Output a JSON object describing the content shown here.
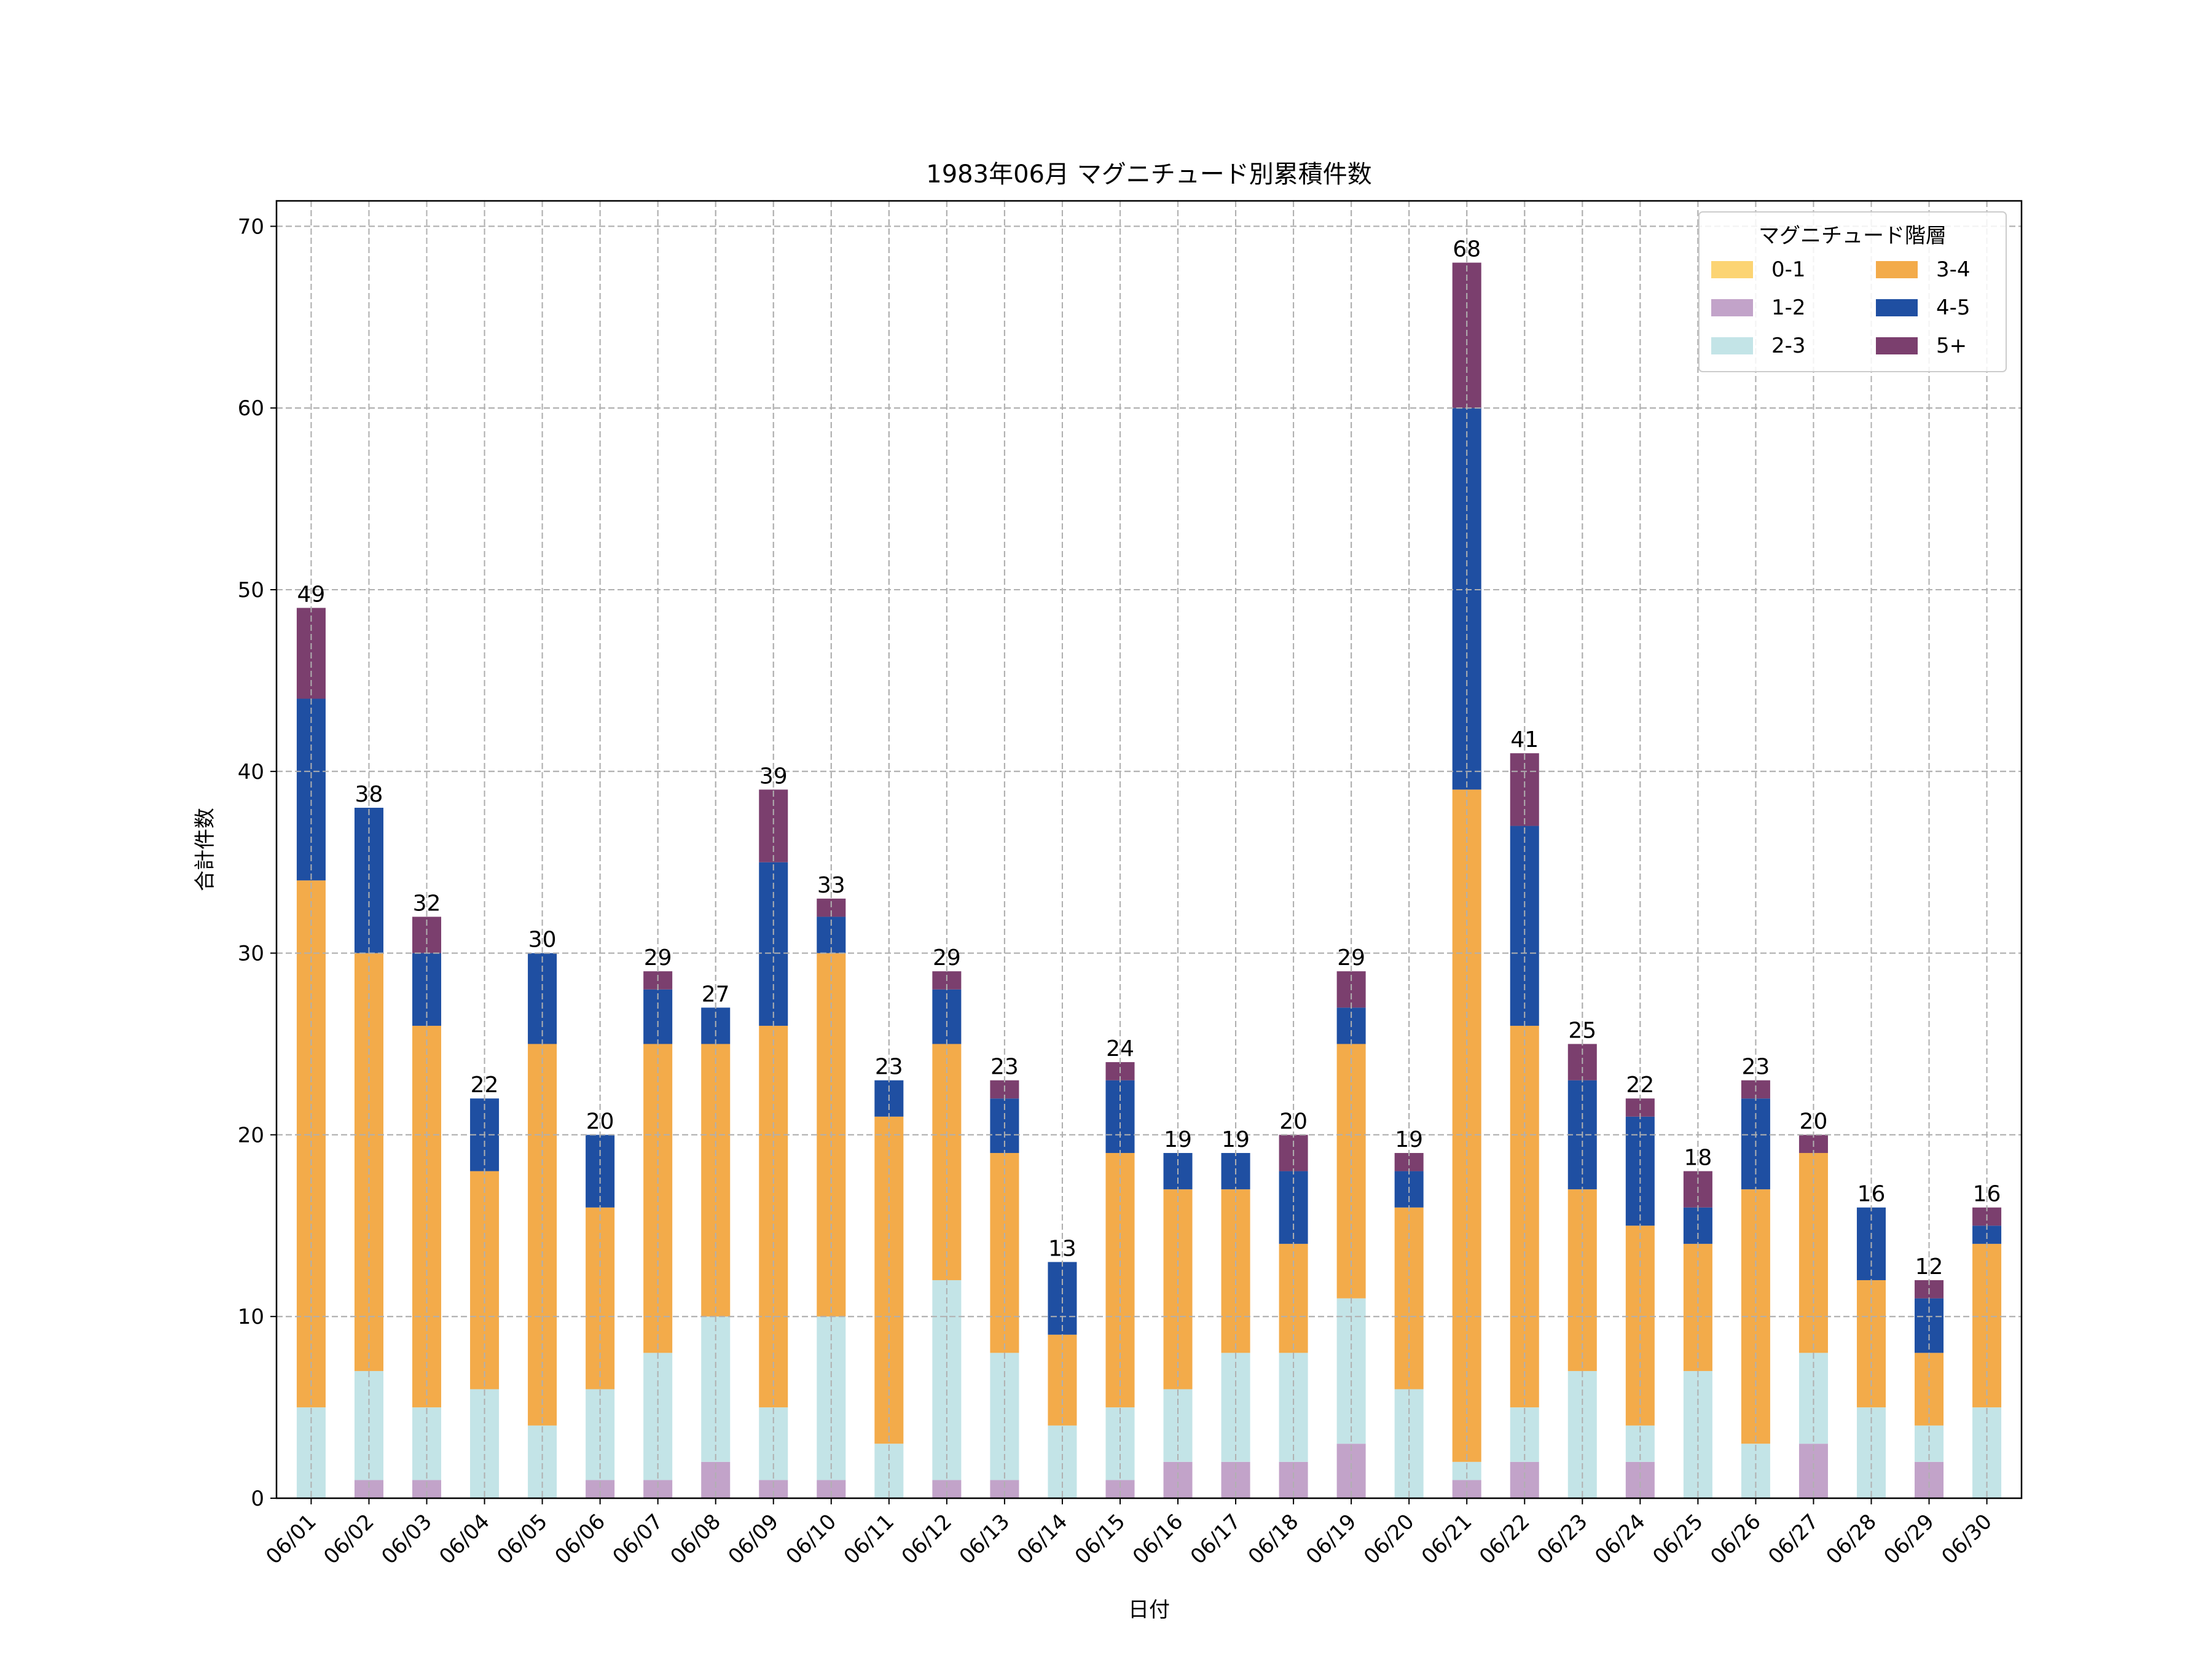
{
  "chart_data": {
    "type": "bar",
    "stacked": true,
    "title": "1983年06月 マグニチュード別累積件数",
    "xlabel": "日付",
    "ylabel": "合計件数",
    "ylim": [
      0,
      71.4
    ],
    "yticks": [
      0,
      10,
      20,
      30,
      40,
      50,
      60,
      70
    ],
    "grid": true,
    "legend": {
      "title": "マグニチュード階層",
      "placement": "top-right",
      "columns": 2
    },
    "categories": [
      "06/01",
      "06/02",
      "06/03",
      "06/04",
      "06/05",
      "06/06",
      "06/07",
      "06/08",
      "06/09",
      "06/10",
      "06/11",
      "06/12",
      "06/13",
      "06/14",
      "06/15",
      "06/16",
      "06/17",
      "06/18",
      "06/19",
      "06/20",
      "06/21",
      "06/22",
      "06/23",
      "06/24",
      "06/25",
      "06/26",
      "06/27",
      "06/28",
      "06/29",
      "06/30"
    ],
    "series": [
      {
        "name": "0-1",
        "color": "#fcd473",
        "values": [
          0,
          0,
          0,
          0,
          0,
          0,
          0,
          0,
          0,
          0,
          0,
          0,
          0,
          0,
          0,
          0,
          0,
          0,
          0,
          0,
          0,
          0,
          0,
          0,
          0,
          0,
          0,
          0,
          0,
          0
        ]
      },
      {
        "name": "1-2",
        "color": "#c2a3c9",
        "values": [
          0,
          1,
          1,
          0,
          0,
          1,
          1,
          2,
          1,
          1,
          0,
          1,
          1,
          0,
          1,
          2,
          2,
          2,
          3,
          0,
          1,
          2,
          0,
          2,
          0,
          0,
          3,
          0,
          2,
          0
        ]
      },
      {
        "name": "2-3",
        "color": "#c3e4e7",
        "values": [
          5,
          6,
          4,
          6,
          4,
          5,
          7,
          8,
          4,
          9,
          3,
          11,
          7,
          4,
          4,
          4,
          6,
          6,
          8,
          6,
          1,
          3,
          7,
          2,
          7,
          3,
          5,
          5,
          2,
          5
        ]
      },
      {
        "name": "3-4",
        "color": "#f3ab4a",
        "values": [
          29,
          23,
          21,
          12,
          21,
          10,
          17,
          15,
          21,
          20,
          18,
          13,
          11,
          5,
          14,
          11,
          9,
          6,
          14,
          10,
          37,
          21,
          10,
          11,
          7,
          14,
          11,
          7,
          4,
          9
        ]
      },
      {
        "name": "4-5",
        "color": "#1f4fa2",
        "values": [
          10,
          8,
          4,
          4,
          5,
          4,
          3,
          2,
          9,
          2,
          2,
          3,
          3,
          4,
          4,
          2,
          2,
          4,
          2,
          2,
          21,
          11,
          6,
          6,
          2,
          5,
          0,
          4,
          3,
          1
        ]
      },
      {
        "name": "5+",
        "color": "#7b3f6e",
        "values": [
          5,
          0,
          2,
          0,
          0,
          0,
          1,
          0,
          4,
          1,
          0,
          1,
          1,
          0,
          1,
          0,
          0,
          2,
          2,
          1,
          8,
          4,
          2,
          1,
          2,
          1,
          1,
          0,
          1,
          1
        ]
      }
    ],
    "totals": [
      49,
      38,
      32,
      22,
      30,
      20,
      29,
      27,
      39,
      33,
      23,
      29,
      23,
      13,
      24,
      19,
      19,
      20,
      29,
      19,
      68,
      41,
      25,
      22,
      18,
      23,
      20,
      16,
      12,
      16
    ]
  }
}
